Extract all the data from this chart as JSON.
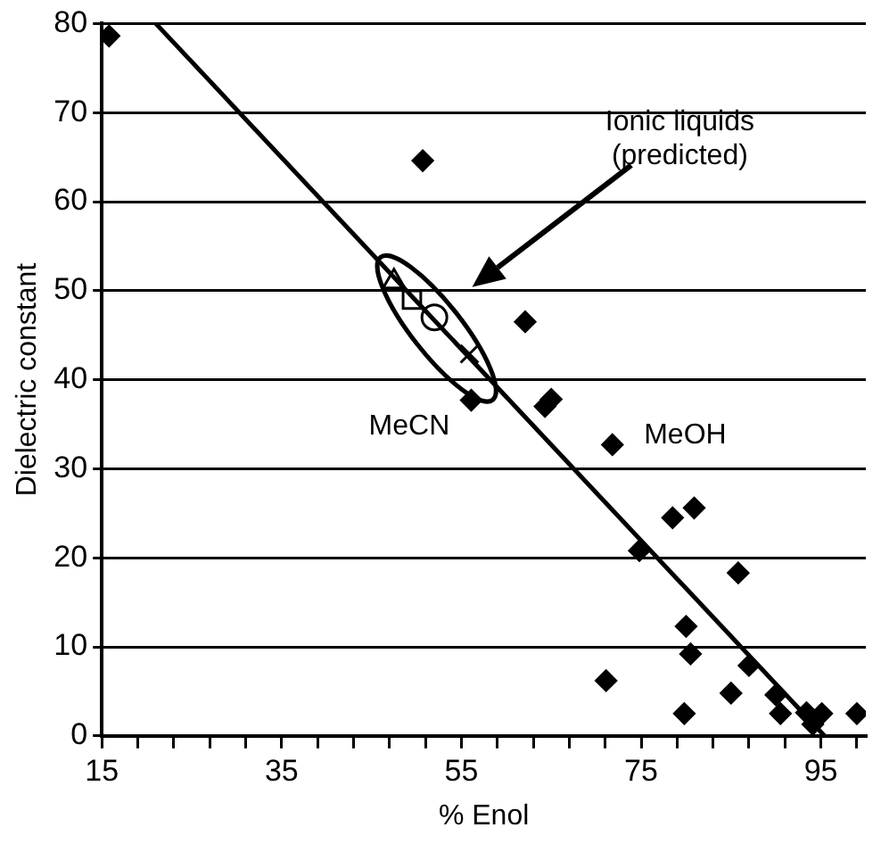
{
  "chart_data": {
    "type": "scatter",
    "xlabel": "% Enol",
    "ylabel": "Dielectric constant",
    "xlim": [
      15,
      100
    ],
    "ylim": [
      0,
      80
    ],
    "xticks": [
      15,
      {
        "value": 19,
        "label": null
      },
      {
        "value": 23,
        "label": null
      },
      {
        "value": 27,
        "label": null
      },
      {
        "value": 31,
        "label": null
      },
      35,
      {
        "value": 39,
        "label": null
      },
      {
        "value": 43,
        "label": null
      },
      {
        "value": 47,
        "label": null
      },
      {
        "value": 51,
        "label": null
      },
      55,
      {
        "value": 59,
        "label": null
      },
      {
        "value": 63,
        "label": null
      },
      {
        "value": 67,
        "label": null
      },
      {
        "value": 71,
        "label": null
      },
      75,
      {
        "value": 79,
        "label": null
      },
      {
        "value": 83,
        "label": null
      },
      {
        "value": 87,
        "label": null
      },
      {
        "value": 91,
        "label": null
      },
      95,
      {
        "value": 99,
        "label": null
      }
    ],
    "yticks": [
      0,
      10,
      20,
      30,
      40,
      50,
      60,
      70,
      80
    ],
    "grid": "y",
    "legend": false,
    "series": [
      {
        "marker": "diamond",
        "color": "#000000",
        "x": [
          15.8,
          50.7,
          62.1,
          56.1,
          65.0,
          64.3,
          71.8,
          74.8,
          78.5,
          80.9,
          85.8,
          80.0,
          80.5,
          71.1,
          87.0,
          85.0,
          79.8,
          90.0,
          90.5,
          93.4,
          94.1,
          95.1,
          99.0
        ],
        "values": [
          78.6,
          64.6,
          46.5,
          37.7,
          37.8,
          37.0,
          32.7,
          20.8,
          24.5,
          25.6,
          18.3,
          12.3,
          9.2,
          6.2,
          7.9,
          4.8,
          2.5,
          4.6,
          2.5,
          2.6,
          1.3,
          2.5,
          2.5
        ]
      },
      {
        "type": "scatter",
        "marker": "triangle",
        "color": "#000000",
        "x": [
          47.5
        ],
        "values": [
          51.0
        ]
      },
      {
        "type": "scatter",
        "marker": "square",
        "color": "#000000",
        "x": [
          49.5
        ],
        "values": [
          49.0
        ]
      },
      {
        "type": "scatter",
        "marker": "circle",
        "color": "#000000",
        "x": [
          52.0
        ],
        "values": [
          47.0
        ]
      },
      {
        "type": "scatter",
        "marker": "cross",
        "color": "#000000",
        "x": [
          55.9
        ],
        "values": [
          42.9
        ]
      },
      {
        "type": "line",
        "marker": "none",
        "line_style": "solid",
        "color": "#000000",
        "x": [
          21,
          95.4
        ],
        "values": [
          80,
          0
        ]
      }
    ],
    "annotations": [
      "Ionic liquids\n(predicted)",
      "MeCN",
      "MeOH"
    ]
  }
}
